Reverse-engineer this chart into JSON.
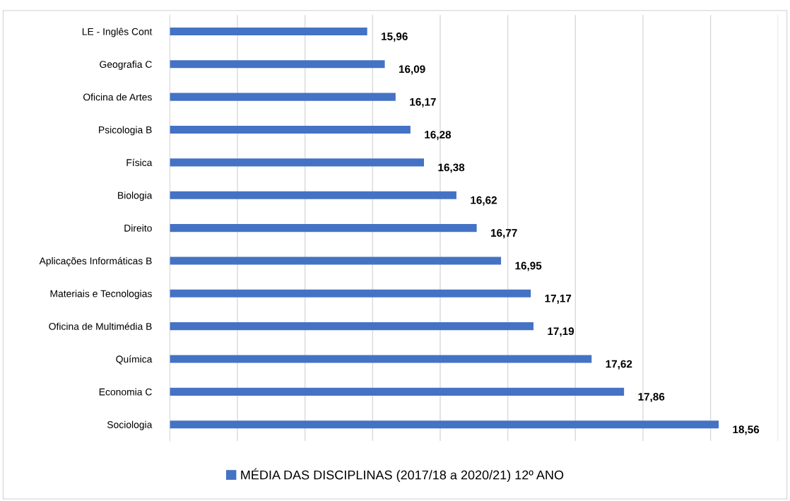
{
  "chart_data": {
    "type": "bar",
    "orientation": "horizontal",
    "categories": [
      "LE - Inglês Cont",
      "Geografia C",
      "Oficina de Artes",
      "Psicologia B",
      "Física",
      "Biologia",
      "Direito",
      "Aplicações Informáticas B",
      "Materiais e Tecnologias",
      "Oficina de Multimédia B",
      "Química",
      "Economia C",
      "Sociologia"
    ],
    "series": [
      {
        "name": "MÉDIA DAS DISCIPLINAS (2017/18 a 2020/21) 12º ANO",
        "color": "#4472c4",
        "values": [
          15.96,
          16.09,
          16.17,
          16.28,
          16.38,
          16.62,
          16.77,
          16.95,
          17.17,
          17.19,
          17.62,
          17.86,
          18.56
        ],
        "value_labels": [
          "15,96",
          "16,09",
          "16,17",
          "16,28",
          "16,38",
          "16,62",
          "16,77",
          "16,95",
          "17,17",
          "17,19",
          "17,62",
          "17,86",
          "18,56"
        ]
      }
    ],
    "xlim": [
      14.5,
      19
    ],
    "xticks": [
      {
        "value": 14.5,
        "label": null
      },
      {
        "value": 15,
        "label": null
      },
      {
        "value": 15.5,
        "label": null
      },
      {
        "value": 16,
        "label": null
      },
      {
        "value": 16.5,
        "label": null
      },
      {
        "value": 17,
        "label": null
      },
      {
        "value": 17.5,
        "label": null
      },
      {
        "value": 18,
        "label": null
      },
      {
        "value": 18.5,
        "label": null
      },
      {
        "value": 19,
        "label": null
      }
    ],
    "grid": "x",
    "legend": "bottom",
    "tick_labels": "y"
  }
}
